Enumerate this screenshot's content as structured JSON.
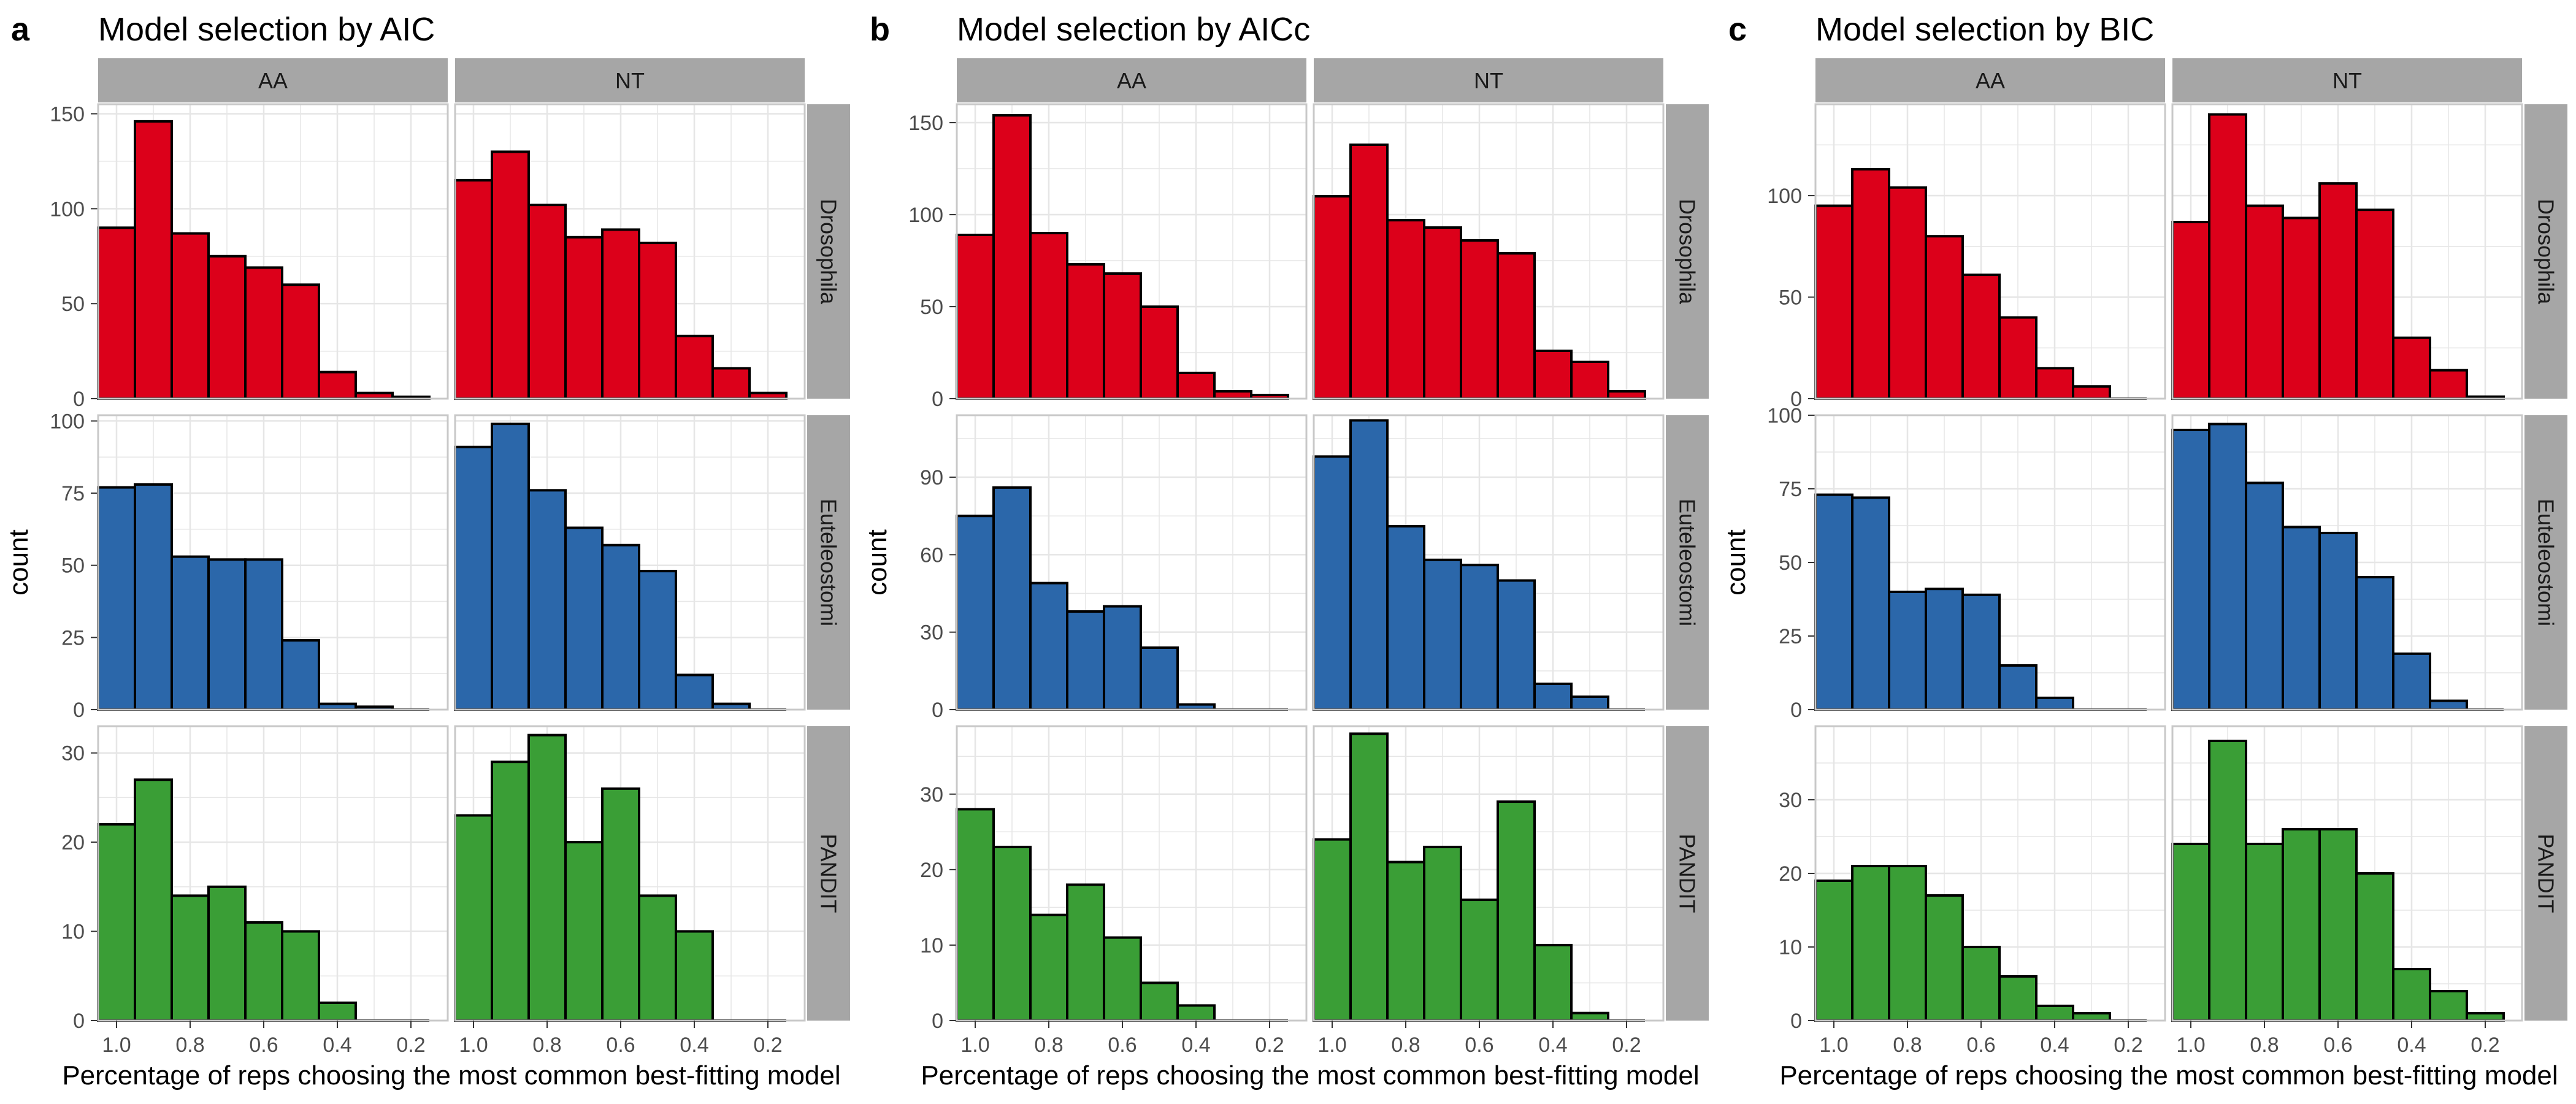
{
  "figure": {
    "background": "#ffffff",
    "strip_color": "#a6a6a6",
    "grid_color": "#e6e6e6",
    "border_color": "#c8c8c8",
    "bar_outline": "#000000",
    "group_colors": {
      "Drosophila": "#dc001a",
      "Euteleostomi": "#2b67aa",
      "PANDIT": "#3a9e36"
    }
  },
  "chart_data": [
    {
      "type": "bar",
      "panel_label": "a",
      "title": "Model selection by AIC",
      "xlabel": "Percentage of reps choosing the most common best-fitting model",
      "ylabel": "count",
      "column_facets": [
        "AA",
        "NT"
      ],
      "row_facets": [
        "Drosophila",
        "Euteleostomi",
        "PANDIT"
      ],
      "x_axis_reversed": true,
      "xlim": [
        1.05,
        0.1
      ],
      "x_ticks": [
        1.0,
        0.8,
        0.6,
        0.4,
        0.2
      ],
      "x_tick_labels": [
        "1.0",
        "0.8",
        "0.6",
        "0.4",
        "0.2"
      ],
      "bin_centers": [
        1.0,
        0.9,
        0.8,
        0.7,
        0.6,
        0.5,
        0.4,
        0.3,
        0.2
      ],
      "bin_width": 0.1,
      "grid": true,
      "rows": [
        {
          "ylim": [
            0,
            155
          ],
          "y_ticks": [
            0,
            50,
            100,
            150
          ],
          "y_tick_labels": [
            "0",
            "50",
            "100",
            "150"
          ],
          "AA": [
            90,
            146,
            87,
            75,
            69,
            60,
            14,
            3,
            1
          ],
          "NT": [
            115,
            130,
            102,
            85,
            89,
            82,
            33,
            16,
            3
          ]
        },
        {
          "ylim": [
            0,
            102
          ],
          "y_ticks": [
            0,
            25,
            50,
            75,
            100
          ],
          "y_tick_labels": [
            "0",
            "25",
            "50",
            "75",
            "100"
          ],
          "AA": [
            77,
            78,
            53,
            52,
            52,
            24,
            2,
            1,
            0
          ],
          "NT": [
            91,
            99,
            76,
            63,
            57,
            48,
            12,
            2,
            0
          ]
        },
        {
          "ylim": [
            0,
            33
          ],
          "y_ticks": [
            0,
            10,
            20,
            30
          ],
          "y_tick_labels": [
            "0",
            "10",
            "20",
            "30"
          ],
          "AA": [
            22,
            27,
            14,
            15,
            11,
            10,
            2,
            0,
            0
          ],
          "NT": [
            23,
            29,
            32,
            20,
            26,
            14,
            10,
            0,
            0
          ]
        }
      ]
    },
    {
      "type": "bar",
      "panel_label": "b",
      "title": "Model selection by AICc",
      "xlabel": "Percentage of reps choosing the most common best-fitting model",
      "ylabel": "count",
      "column_facets": [
        "AA",
        "NT"
      ],
      "row_facets": [
        "Drosophila",
        "Euteleostomi",
        "PANDIT"
      ],
      "x_axis_reversed": true,
      "xlim": [
        1.05,
        0.1
      ],
      "x_ticks": [
        1.0,
        0.8,
        0.6,
        0.4,
        0.2
      ],
      "x_tick_labels": [
        "1.0",
        "0.8",
        "0.6",
        "0.4",
        "0.2"
      ],
      "bin_centers": [
        1.0,
        0.9,
        0.8,
        0.7,
        0.6,
        0.5,
        0.4,
        0.3,
        0.2
      ],
      "bin_width": 0.1,
      "grid": true,
      "rows": [
        {
          "ylim": [
            0,
            160
          ],
          "y_ticks": [
            0,
            50,
            100,
            150
          ],
          "y_tick_labels": [
            "0",
            "50",
            "100",
            "150"
          ],
          "AA": [
            89,
            154,
            90,
            73,
            68,
            50,
            14,
            4,
            2
          ],
          "NT": [
            110,
            138,
            97,
            93,
            86,
            79,
            26,
            20,
            4
          ]
        },
        {
          "ylim": [
            0,
            114
          ],
          "y_ticks": [
            0,
            30,
            60,
            90
          ],
          "y_tick_labels": [
            "0",
            "30",
            "60",
            "90"
          ],
          "AA": [
            75,
            86,
            49,
            38,
            40,
            24,
            2,
            0,
            0
          ],
          "NT": [
            98,
            112,
            71,
            58,
            56,
            50,
            10,
            5,
            0
          ]
        },
        {
          "ylim": [
            0,
            39
          ],
          "y_ticks": [
            0,
            10,
            20,
            30
          ],
          "y_tick_labels": [
            "0",
            "10",
            "20",
            "30"
          ],
          "AA": [
            28,
            23,
            14,
            18,
            11,
            5,
            2,
            0,
            0
          ],
          "NT": [
            24,
            38,
            21,
            23,
            16,
            29,
            10,
            1,
            0
          ]
        }
      ]
    },
    {
      "type": "bar",
      "panel_label": "c",
      "title": "Model selection by BIC",
      "xlabel": "Percentage of reps choosing the most common best-fitting model",
      "ylabel": "count",
      "column_facets": [
        "AA",
        "NT"
      ],
      "row_facets": [
        "Drosophila",
        "Euteleostomi",
        "PANDIT"
      ],
      "x_axis_reversed": true,
      "xlim": [
        1.05,
        0.1
      ],
      "x_ticks": [
        1.0,
        0.8,
        0.6,
        0.4,
        0.2
      ],
      "x_tick_labels": [
        "1.0",
        "0.8",
        "0.6",
        "0.4",
        "0.2"
      ],
      "bin_centers": [
        1.0,
        0.9,
        0.8,
        0.7,
        0.6,
        0.5,
        0.4,
        0.3,
        0.2
      ],
      "bin_width": 0.1,
      "grid": true,
      "rows": [
        {
          "ylim": [
            0,
            145
          ],
          "y_ticks": [
            0,
            50,
            100
          ],
          "y_tick_labels": [
            "0",
            "50",
            "100"
          ],
          "AA": [
            95,
            113,
            104,
            80,
            61,
            40,
            15,
            6,
            0
          ],
          "NT": [
            87,
            140,
            95,
            89,
            106,
            93,
            30,
            14,
            1
          ]
        },
        {
          "ylim": [
            0,
            100
          ],
          "y_ticks": [
            0,
            25,
            50,
            75,
            100
          ],
          "y_tick_labels": [
            "0",
            "25",
            "50",
            "75",
            "100"
          ],
          "AA": [
            73,
            72,
            40,
            41,
            39,
            15,
            4,
            0,
            0
          ],
          "NT": [
            95,
            97,
            77,
            62,
            60,
            45,
            19,
            3,
            0
          ]
        },
        {
          "ylim": [
            0,
            40
          ],
          "y_ticks": [
            0,
            10,
            20,
            30
          ],
          "y_tick_labels": [
            "0",
            "10",
            "20",
            "30"
          ],
          "AA": [
            19,
            21,
            21,
            17,
            10,
            6,
            2,
            1,
            0
          ],
          "NT": [
            24,
            38,
            24,
            26,
            26,
            20,
            7,
            4,
            1
          ]
        }
      ]
    }
  ]
}
